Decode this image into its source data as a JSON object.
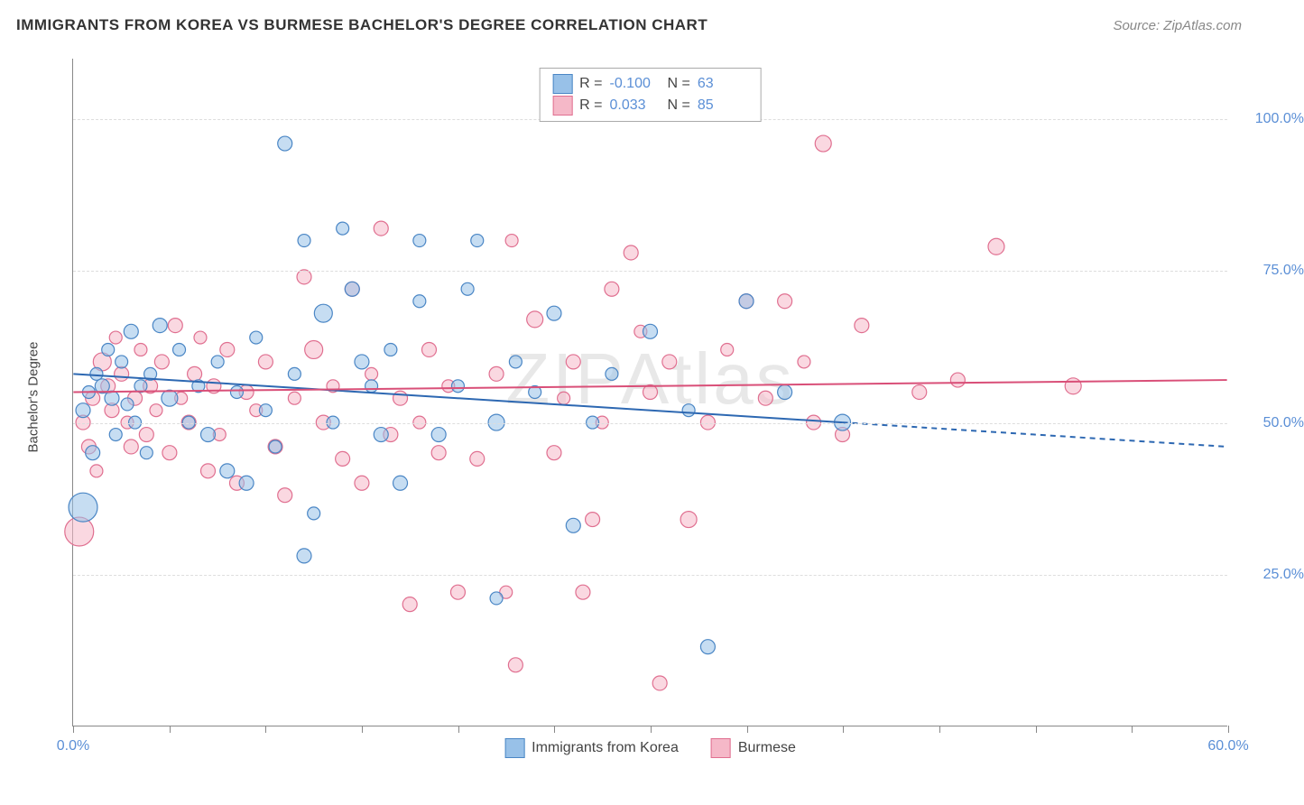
{
  "title": "IMMIGRANTS FROM KOREA VS BURMESE BACHELOR'S DEGREE CORRELATION CHART",
  "source": "Source: ZipAtlas.com",
  "watermark": "ZIPAtlas",
  "y_axis_label": "Bachelor's Degree",
  "axis_label_color": "#5b8fd6",
  "title_color": "#333333",
  "source_color": "#888888",
  "chart": {
    "type": "scatter",
    "background_color": "#ffffff",
    "grid_color": "#dddddd",
    "border_color": "#888888",
    "xlim": [
      0,
      60
    ],
    "ylim": [
      0,
      110
    ],
    "y_ticks": [
      25,
      50,
      75,
      100
    ],
    "y_tick_labels": [
      "25.0%",
      "50.0%",
      "75.0%",
      "100.0%"
    ],
    "x_tick_positions": [
      0,
      5,
      10,
      15,
      20,
      25,
      30,
      35,
      40,
      45,
      50,
      55,
      60
    ],
    "x_start_label": "0.0%",
    "x_end_label": "60.0%",
    "series": [
      {
        "name": "Immigrants from Korea",
        "color_fill": "#98c1e8",
        "color_stroke": "#4a86c5",
        "fill_opacity": 0.55,
        "R": "-0.100",
        "N": "63",
        "trend": {
          "x1": 0,
          "y1": 58,
          "x2": 40,
          "y2": 50,
          "x_dashed_to": 60,
          "y_dashed_to": 46,
          "line_color": "#2d68b2",
          "line_width": 2
        },
        "points": [
          {
            "x": 0.5,
            "y": 36,
            "r": 16
          },
          {
            "x": 0.5,
            "y": 52,
            "r": 8
          },
          {
            "x": 0.8,
            "y": 55,
            "r": 7
          },
          {
            "x": 1.0,
            "y": 45,
            "r": 8
          },
          {
            "x": 1.2,
            "y": 58,
            "r": 7
          },
          {
            "x": 1.5,
            "y": 56,
            "r": 8
          },
          {
            "x": 1.8,
            "y": 62,
            "r": 7
          },
          {
            "x": 2.0,
            "y": 54,
            "r": 8
          },
          {
            "x": 2.2,
            "y": 48,
            "r": 7
          },
          {
            "x": 2.5,
            "y": 60,
            "r": 7
          },
          {
            "x": 2.8,
            "y": 53,
            "r": 7
          },
          {
            "x": 3.0,
            "y": 65,
            "r": 8
          },
          {
            "x": 3.2,
            "y": 50,
            "r": 7
          },
          {
            "x": 3.5,
            "y": 56,
            "r": 7
          },
          {
            "x": 3.8,
            "y": 45,
            "r": 7
          },
          {
            "x": 4.0,
            "y": 58,
            "r": 7
          },
          {
            "x": 4.5,
            "y": 66,
            "r": 8
          },
          {
            "x": 5.0,
            "y": 54,
            "r": 9
          },
          {
            "x": 5.5,
            "y": 62,
            "r": 7
          },
          {
            "x": 6.0,
            "y": 50,
            "r": 7
          },
          {
            "x": 6.5,
            "y": 56,
            "r": 7
          },
          {
            "x": 7.0,
            "y": 48,
            "r": 8
          },
          {
            "x": 7.5,
            "y": 60,
            "r": 7
          },
          {
            "x": 8.0,
            "y": 42,
            "r": 8
          },
          {
            "x": 8.5,
            "y": 55,
            "r": 7
          },
          {
            "x": 9.0,
            "y": 40,
            "r": 8
          },
          {
            "x": 9.5,
            "y": 64,
            "r": 7
          },
          {
            "x": 10.0,
            "y": 52,
            "r": 7
          },
          {
            "x": 10.5,
            "y": 46,
            "r": 7
          },
          {
            "x": 11.0,
            "y": 96,
            "r": 8
          },
          {
            "x": 11.5,
            "y": 58,
            "r": 7
          },
          {
            "x": 12.0,
            "y": 28,
            "r": 8
          },
          {
            "x": 12.0,
            "y": 80,
            "r": 7
          },
          {
            "x": 12.5,
            "y": 35,
            "r": 7
          },
          {
            "x": 13.0,
            "y": 68,
            "r": 10
          },
          {
            "x": 13.5,
            "y": 50,
            "r": 7
          },
          {
            "x": 14.0,
            "y": 82,
            "r": 7
          },
          {
            "x": 14.5,
            "y": 72,
            "r": 8
          },
          {
            "x": 15.0,
            "y": 60,
            "r": 8
          },
          {
            "x": 15.5,
            "y": 56,
            "r": 7
          },
          {
            "x": 16.0,
            "y": 48,
            "r": 8
          },
          {
            "x": 16.5,
            "y": 62,
            "r": 7
          },
          {
            "x": 17.0,
            "y": 40,
            "r": 8
          },
          {
            "x": 18.0,
            "y": 70,
            "r": 7
          },
          {
            "x": 18.0,
            "y": 80,
            "r": 7
          },
          {
            "x": 19.0,
            "y": 48,
            "r": 8
          },
          {
            "x": 20.0,
            "y": 56,
            "r": 7
          },
          {
            "x": 20.5,
            "y": 72,
            "r": 7
          },
          {
            "x": 21.0,
            "y": 80,
            "r": 7
          },
          {
            "x": 22.0,
            "y": 50,
            "r": 9
          },
          {
            "x": 23.0,
            "y": 60,
            "r": 7
          },
          {
            "x": 24.0,
            "y": 55,
            "r": 7
          },
          {
            "x": 25.0,
            "y": 68,
            "r": 8
          },
          {
            "x": 26.0,
            "y": 33,
            "r": 8
          },
          {
            "x": 27.0,
            "y": 50,
            "r": 7
          },
          {
            "x": 28.0,
            "y": 58,
            "r": 7
          },
          {
            "x": 30.0,
            "y": 65,
            "r": 8
          },
          {
            "x": 32.0,
            "y": 52,
            "r": 7
          },
          {
            "x": 33.0,
            "y": 13,
            "r": 8
          },
          {
            "x": 35.0,
            "y": 70,
            "r": 8
          },
          {
            "x": 37.0,
            "y": 55,
            "r": 8
          },
          {
            "x": 40.0,
            "y": 50,
            "r": 9
          },
          {
            "x": 22.0,
            "y": 21,
            "r": 7
          }
        ]
      },
      {
        "name": "Burmese",
        "color_fill": "#f5b8c8",
        "color_stroke": "#e06f90",
        "fill_opacity": 0.55,
        "R": "0.033",
        "N": "85",
        "trend": {
          "x1": 0,
          "y1": 55,
          "x2": 60,
          "y2": 57,
          "line_color": "#d94f78",
          "line_width": 2
        },
        "points": [
          {
            "x": 0.3,
            "y": 32,
            "r": 16
          },
          {
            "x": 0.5,
            "y": 50,
            "r": 8
          },
          {
            "x": 0.8,
            "y": 46,
            "r": 8
          },
          {
            "x": 1.0,
            "y": 54,
            "r": 8
          },
          {
            "x": 1.2,
            "y": 42,
            "r": 7
          },
          {
            "x": 1.5,
            "y": 60,
            "r": 10
          },
          {
            "x": 1.8,
            "y": 56,
            "r": 8
          },
          {
            "x": 2.0,
            "y": 52,
            "r": 8
          },
          {
            "x": 2.2,
            "y": 64,
            "r": 7
          },
          {
            "x": 2.5,
            "y": 58,
            "r": 8
          },
          {
            "x": 2.8,
            "y": 50,
            "r": 7
          },
          {
            "x": 3.0,
            "y": 46,
            "r": 8
          },
          {
            "x": 3.2,
            "y": 54,
            "r": 8
          },
          {
            "x": 3.5,
            "y": 62,
            "r": 7
          },
          {
            "x": 3.8,
            "y": 48,
            "r": 8
          },
          {
            "x": 4.0,
            "y": 56,
            "r": 8
          },
          {
            "x": 4.3,
            "y": 52,
            "r": 7
          },
          {
            "x": 4.6,
            "y": 60,
            "r": 8
          },
          {
            "x": 5.0,
            "y": 45,
            "r": 8
          },
          {
            "x": 5.3,
            "y": 66,
            "r": 8
          },
          {
            "x": 5.6,
            "y": 54,
            "r": 7
          },
          {
            "x": 6.0,
            "y": 50,
            "r": 8
          },
          {
            "x": 6.3,
            "y": 58,
            "r": 8
          },
          {
            "x": 6.6,
            "y": 64,
            "r": 7
          },
          {
            "x": 7.0,
            "y": 42,
            "r": 8
          },
          {
            "x": 7.3,
            "y": 56,
            "r": 8
          },
          {
            "x": 7.6,
            "y": 48,
            "r": 7
          },
          {
            "x": 8.0,
            "y": 62,
            "r": 8
          },
          {
            "x": 8.5,
            "y": 40,
            "r": 8
          },
          {
            "x": 9.0,
            "y": 55,
            "r": 8
          },
          {
            "x": 9.5,
            "y": 52,
            "r": 7
          },
          {
            "x": 10.0,
            "y": 60,
            "r": 8
          },
          {
            "x": 10.5,
            "y": 46,
            "r": 8
          },
          {
            "x": 11.0,
            "y": 38,
            "r": 8
          },
          {
            "x": 11.5,
            "y": 54,
            "r": 7
          },
          {
            "x": 12.0,
            "y": 74,
            "r": 8
          },
          {
            "x": 12.5,
            "y": 62,
            "r": 10
          },
          {
            "x": 13.0,
            "y": 50,
            "r": 8
          },
          {
            "x": 13.5,
            "y": 56,
            "r": 7
          },
          {
            "x": 14.0,
            "y": 44,
            "r": 8
          },
          {
            "x": 14.5,
            "y": 72,
            "r": 8
          },
          {
            "x": 15.0,
            "y": 40,
            "r": 8
          },
          {
            "x": 15.5,
            "y": 58,
            "r": 7
          },
          {
            "x": 16.0,
            "y": 82,
            "r": 8
          },
          {
            "x": 16.5,
            "y": 48,
            "r": 8
          },
          {
            "x": 17.0,
            "y": 54,
            "r": 8
          },
          {
            "x": 17.5,
            "y": 20,
            "r": 8
          },
          {
            "x": 18.0,
            "y": 50,
            "r": 7
          },
          {
            "x": 18.5,
            "y": 62,
            "r": 8
          },
          {
            "x": 19.0,
            "y": 45,
            "r": 8
          },
          {
            "x": 19.5,
            "y": 56,
            "r": 7
          },
          {
            "x": 20.0,
            "y": 22,
            "r": 8
          },
          {
            "x": 21.0,
            "y": 44,
            "r": 8
          },
          {
            "x": 22.0,
            "y": 58,
            "r": 8
          },
          {
            "x": 22.5,
            "y": 22,
            "r": 7
          },
          {
            "x": 23.0,
            "y": 10,
            "r": 8
          },
          {
            "x": 24.0,
            "y": 67,
            "r": 9
          },
          {
            "x": 25.0,
            "y": 45,
            "r": 8
          },
          {
            "x": 25.5,
            "y": 54,
            "r": 7
          },
          {
            "x": 26.0,
            "y": 60,
            "r": 8
          },
          {
            "x": 26.5,
            "y": 22,
            "r": 8
          },
          {
            "x": 27.0,
            "y": 34,
            "r": 8
          },
          {
            "x": 27.5,
            "y": 50,
            "r": 7
          },
          {
            "x": 28.0,
            "y": 72,
            "r": 8
          },
          {
            "x": 29.0,
            "y": 78,
            "r": 8
          },
          {
            "x": 29.5,
            "y": 65,
            "r": 7
          },
          {
            "x": 30.0,
            "y": 55,
            "r": 8
          },
          {
            "x": 30.5,
            "y": 7,
            "r": 8
          },
          {
            "x": 31.0,
            "y": 60,
            "r": 8
          },
          {
            "x": 32.0,
            "y": 34,
            "r": 9
          },
          {
            "x": 33.0,
            "y": 50,
            "r": 8
          },
          {
            "x": 34.0,
            "y": 62,
            "r": 7
          },
          {
            "x": 35.0,
            "y": 70,
            "r": 8
          },
          {
            "x": 36.0,
            "y": 54,
            "r": 8
          },
          {
            "x": 37.0,
            "y": 70,
            "r": 8
          },
          {
            "x": 38.0,
            "y": 60,
            "r": 7
          },
          {
            "x": 38.5,
            "y": 50,
            "r": 8
          },
          {
            "x": 39.0,
            "y": 96,
            "r": 9
          },
          {
            "x": 40.0,
            "y": 48,
            "r": 8
          },
          {
            "x": 41.0,
            "y": 66,
            "r": 8
          },
          {
            "x": 44.0,
            "y": 55,
            "r": 8
          },
          {
            "x": 46.0,
            "y": 57,
            "r": 8
          },
          {
            "x": 48.0,
            "y": 79,
            "r": 9
          },
          {
            "x": 52.0,
            "y": 56,
            "r": 9
          },
          {
            "x": 22.8,
            "y": 80,
            "r": 7
          }
        ]
      }
    ]
  },
  "stats_legend": {
    "r_label": "R =",
    "n_label": "N ="
  },
  "bottom_legend": {
    "items": [
      "Immigrants from Korea",
      "Burmese"
    ]
  }
}
